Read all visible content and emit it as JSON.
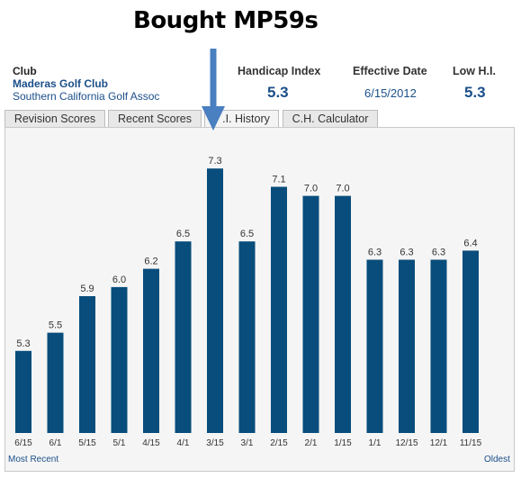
{
  "annotation": {
    "title": "Bought MP59s",
    "arrow_color": "#4a7fc0"
  },
  "club": {
    "label": "Club",
    "name": "Maderas Golf Club",
    "association": "Southern California Golf Assoc"
  },
  "stats": {
    "handicap_label": "Handicap Index",
    "handicap_value": "5.3",
    "date_label": "Effective Date",
    "date_value": "6/15/2012",
    "low_label": "Low H.I.",
    "low_value": "5.3"
  },
  "tabs": [
    {
      "label": "Revision Scores"
    },
    {
      "label": "Recent Scores"
    },
    {
      "label": ".I. History"
    },
    {
      "label": "C.H. Calculator"
    }
  ],
  "chart_data": {
    "type": "bar",
    "categories": [
      "6/15",
      "6/1",
      "5/15",
      "5/1",
      "4/15",
      "4/1",
      "3/15",
      "3/1",
      "2/15",
      "2/1",
      "1/15",
      "1/1",
      "12/15",
      "12/1",
      "11/15"
    ],
    "values": [
      5.3,
      5.5,
      5.9,
      6.0,
      6.2,
      6.5,
      7.3,
      6.5,
      7.1,
      7.0,
      7.0,
      6.3,
      6.3,
      6.3,
      6.4
    ],
    "value_labels": [
      "5.3",
      "5.5",
      "5.9",
      "6.0",
      "6.2",
      "6.5",
      "7.3",
      "6.5",
      "7.1",
      "7.0",
      "7.0",
      "6.3",
      "6.3",
      "6.3",
      "6.4"
    ],
    "bar_color": "#084d7c",
    "ylim": [
      4.4,
      7.45
    ],
    "grid": false
  },
  "footer": {
    "left": "Most Recent",
    "right": "Oldest"
  }
}
